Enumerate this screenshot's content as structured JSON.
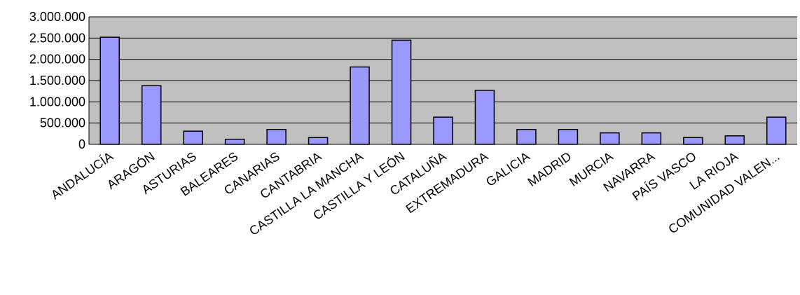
{
  "chart_data": {
    "type": "bar",
    "title": "",
    "xlabel": "",
    "ylabel": "",
    "ylim": [
      0,
      3000000
    ],
    "yticks": [
      {
        "value": 0,
        "label": "0"
      },
      {
        "value": 500000,
        "label": "500.000"
      },
      {
        "value": 1000000,
        "label": "1.000.000"
      },
      {
        "value": 1500000,
        "label": "1.500.000"
      },
      {
        "value": 2000000,
        "label": "2.000.000"
      },
      {
        "value": 2500000,
        "label": "2.500.000"
      },
      {
        "value": 3000000,
        "label": "3.000.000"
      }
    ],
    "grid": true,
    "legend": "none",
    "categories": [
      "ANDALUCÍA",
      "ARAGÓN",
      "ASTURIAS",
      "BALEARES",
      "CANARIAS",
      "CANTABRIA",
      "CASTILLA LA MANCHA",
      "CASTILLA Y LEÓN",
      "CATALUÑA",
      "EXTREMADURA",
      "GALICIA",
      "MADRID",
      "MURCIA",
      "NAVARRA",
      "PAÍS VASCO",
      "LA RIOJA",
      "COMUNIDAD VALEN..."
    ],
    "values": [
      2520000,
      1380000,
      310000,
      120000,
      350000,
      160000,
      1820000,
      2450000,
      640000,
      1270000,
      350000,
      350000,
      270000,
      270000,
      160000,
      200000,
      640000
    ],
    "colors": {
      "plot_bg": "#c0c0c0",
      "bar_fill": "#9999ff",
      "bar_stroke": "#000000",
      "grid": "#000000"
    }
  }
}
